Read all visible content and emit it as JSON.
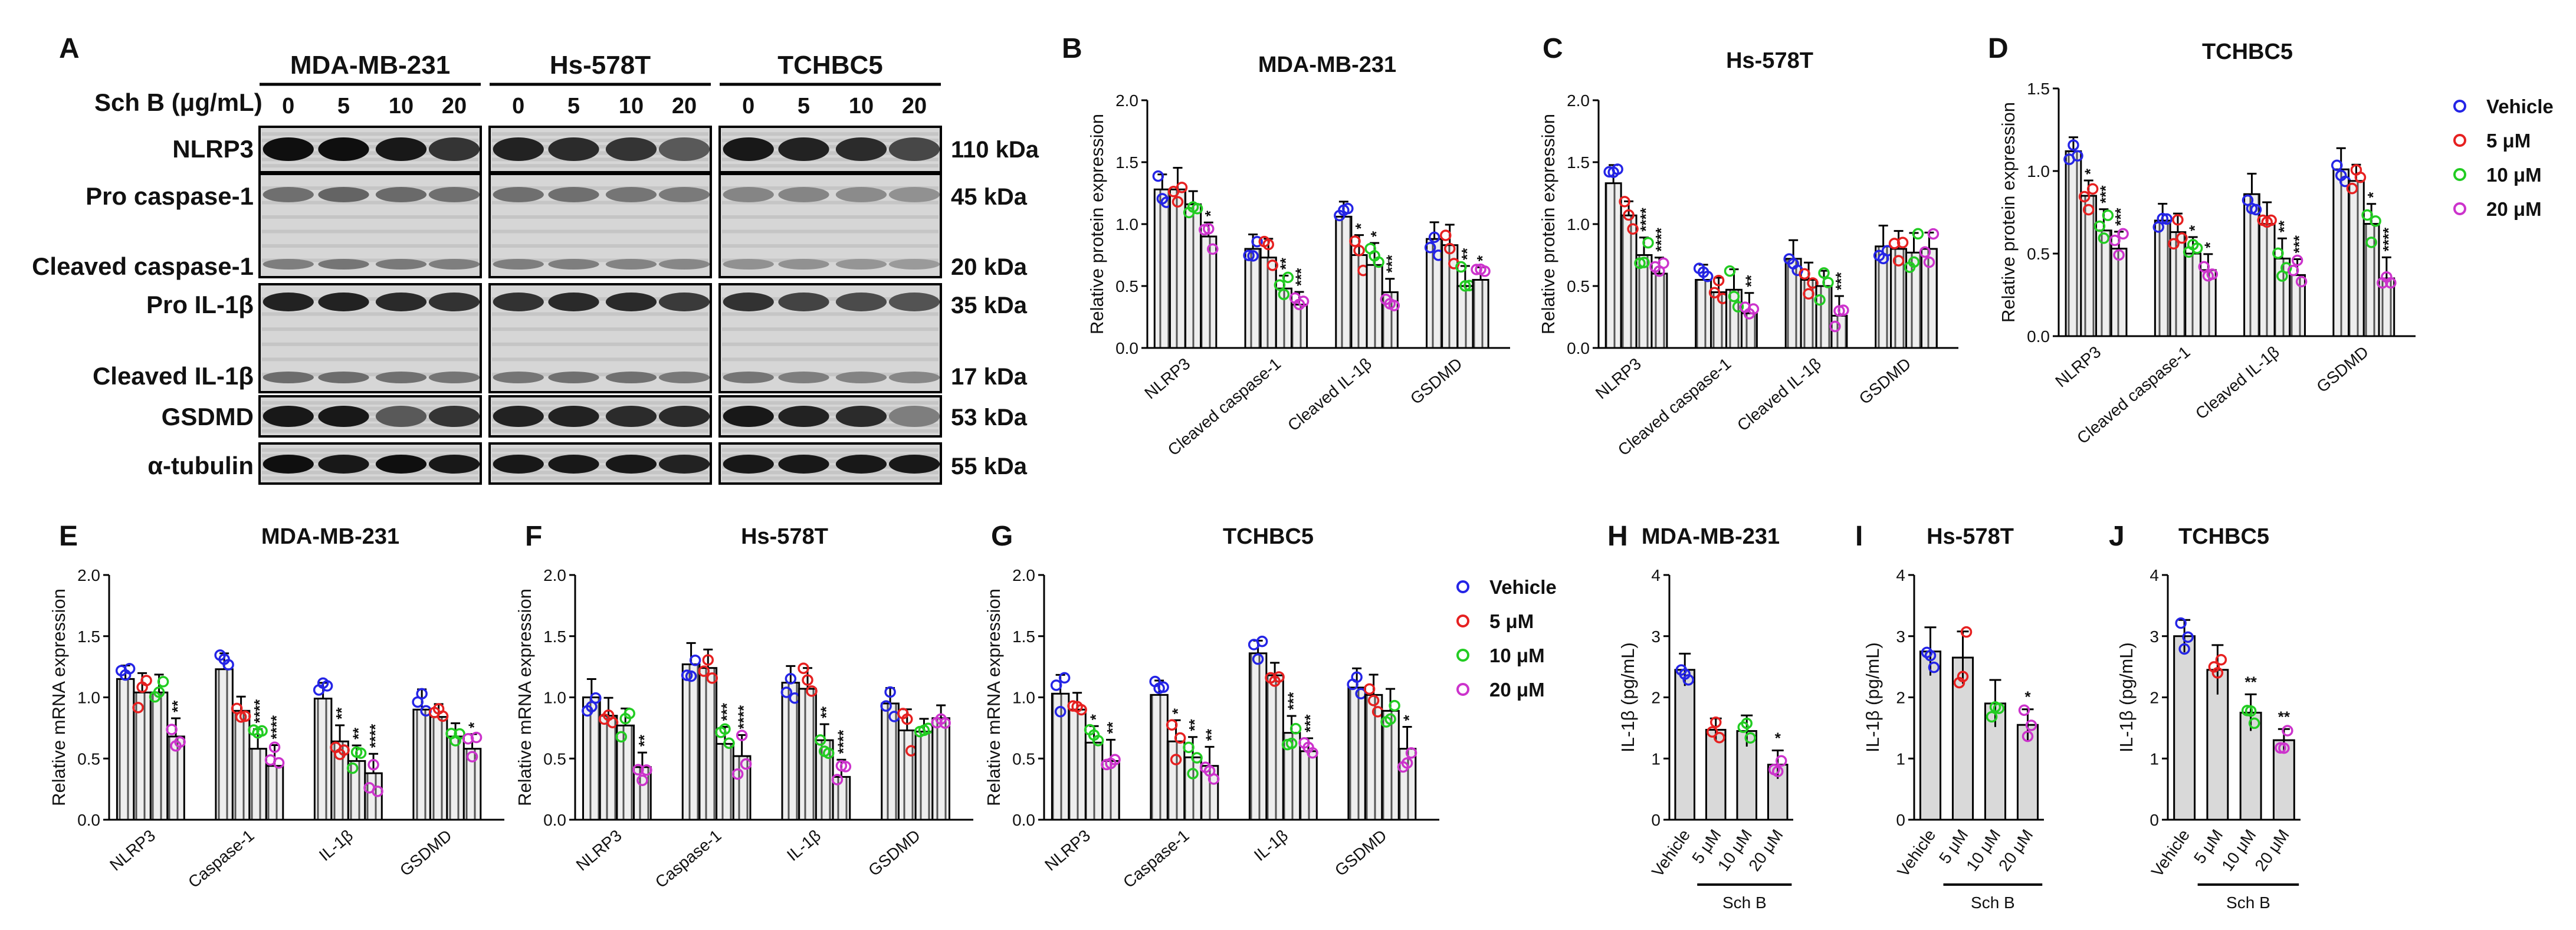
{
  "panel_letters": [
    "A",
    "B",
    "C",
    "D",
    "E",
    "F",
    "G",
    "H",
    "I",
    "J"
  ],
  "western_blot": {
    "cell_lines": [
      "MDA-MB-231",
      "Hs-578T",
      "TCHBC5"
    ],
    "dose_label": "Sch B (μg/mL)",
    "doses": [
      "0",
      "5",
      "10",
      "20"
    ],
    "row_labels": [
      "NLRP3",
      "Pro caspase-1",
      "Cleaved caspase-1",
      "Pro IL-1β",
      "Cleaved IL-1β",
      "GSDMD",
      "α-tubulin"
    ],
    "kda": [
      "110 kDa",
      "45 kDa",
      "20 kDa",
      "35 kDa",
      "17 kDa",
      "53 kDa",
      "55 kDa"
    ]
  },
  "legend": {
    "entries": [
      "Vehicle",
      "5 μM",
      "10 μM",
      "20 μM"
    ],
    "colors": [
      "#2424e6",
      "#e62020",
      "#22cc22",
      "#cc33cc"
    ]
  },
  "chart_data": [
    {
      "panel": "B",
      "type": "bar",
      "title": "MDA-MB-231",
      "ylabel": "Relative protein expression",
      "ylim": [
        0,
        2.0
      ],
      "yticks": [
        "0.0",
        "0.5",
        "1.0",
        "1.5",
        "2.0"
      ],
      "categories": [
        "NLRP3",
        "Cleaved caspase-1",
        "Cleaved IL-1β",
        "GSDMD"
      ],
      "series": [
        {
          "name": "Vehicle",
          "values": [
            1.28,
            0.8,
            1.06,
            0.88
          ]
        },
        {
          "name": "5 μM",
          "values": [
            1.28,
            0.73,
            0.75,
            0.83
          ]
        },
        {
          "name": "10 μM",
          "values": [
            1.16,
            0.48,
            0.67,
            0.5
          ]
        },
        {
          "name": "20 μM",
          "values": [
            0.9,
            0.35,
            0.45,
            0.55
          ]
        }
      ],
      "significance": [
        [
          "",
          "",
          "",
          ""
        ],
        [
          "",
          "",
          "*",
          ""
        ],
        [
          "",
          "**",
          "*",
          "**"
        ],
        [
          "*",
          "***",
          "***",
          "*"
        ]
      ]
    },
    {
      "panel": "C",
      "type": "bar",
      "title": "Hs-578T",
      "ylabel": "Relative protein expression",
      "ylim": [
        0,
        2.0
      ],
      "yticks": [
        "0.0",
        "0.5",
        "1.0",
        "1.5",
        "2.0"
      ],
      "categories": [
        "NLRP3",
        "Cleaved caspase-1",
        "Cleaved IL-1β",
        "GSDMD"
      ],
      "series": [
        {
          "name": "Vehicle",
          "values": [
            1.33,
            0.55,
            0.72,
            0.82
          ]
        },
        {
          "name": "5 μM",
          "values": [
            1.07,
            0.45,
            0.55,
            0.8
          ]
        },
        {
          "name": "10 μM",
          "values": [
            0.75,
            0.47,
            0.5,
            0.77
          ]
        },
        {
          "name": "20 μM",
          "values": [
            0.6,
            0.28,
            0.26,
            0.8
          ]
        }
      ],
      "significance": [
        [
          "",
          "",
          "",
          ""
        ],
        [
          "",
          "",
          "",
          ""
        ],
        [
          "****",
          "",
          "",
          ""
        ],
        [
          "****",
          "**",
          "***",
          ""
        ]
      ]
    },
    {
      "panel": "D",
      "type": "bar",
      "title": "TCHBC5",
      "ylabel": "Relative protein expression",
      "ylim": [
        0,
        1.5
      ],
      "yticks": [
        "0.0",
        "0.5",
        "1.0",
        "1.5"
      ],
      "categories": [
        "NLRP3",
        "Cleaved caspase-1",
        "Cleaved IL-1β",
        "GSDMD"
      ],
      "series": [
        {
          "name": "Vehicle",
          "values": [
            1.12,
            0.7,
            0.86,
            1.01
          ]
        },
        {
          "name": "5 μM",
          "values": [
            0.85,
            0.63,
            0.68,
            0.94
          ]
        },
        {
          "name": "10 μM",
          "values": [
            0.64,
            0.5,
            0.47,
            0.68
          ]
        },
        {
          "name": "20 μM",
          "values": [
            0.53,
            0.4,
            0.37,
            0.35
          ]
        }
      ],
      "significance": [
        [
          "",
          "",
          "",
          ""
        ],
        [
          "*",
          "",
          "",
          ""
        ],
        [
          "***",
          "*",
          "**",
          "*"
        ],
        [
          "***",
          "*",
          "***",
          "****"
        ]
      ]
    },
    {
      "panel": "E",
      "type": "bar",
      "title": "MDA-MB-231",
      "ylabel": "Relative mRNA expression",
      "ylim": [
        0,
        2.0
      ],
      "yticks": [
        "0.0",
        "0.5",
        "1.0",
        "1.5",
        "2.0"
      ],
      "categories": [
        "NLRP3",
        "Caspase-1",
        "IL-1β",
        "GSDMD"
      ],
      "series": [
        {
          "name": "Vehicle",
          "values": [
            1.15,
            1.23,
            0.99,
            0.9
          ]
        },
        {
          "name": "5 μM",
          "values": [
            1.04,
            0.89,
            0.64,
            0.84
          ]
        },
        {
          "name": "10 μM",
          "values": [
            1.04,
            0.58,
            0.48,
            0.68
          ]
        },
        {
          "name": "20 μM",
          "values": [
            0.68,
            0.44,
            0.38,
            0.58
          ]
        }
      ],
      "significance": [
        [
          "",
          "",
          "",
          ""
        ],
        [
          "",
          "",
          "**",
          ""
        ],
        [
          "",
          "****",
          "**",
          ""
        ],
        [
          "**",
          "****",
          "****",
          "*"
        ]
      ]
    },
    {
      "panel": "F",
      "type": "bar",
      "title": "Hs-578T",
      "ylabel": "Relative mRNA expression",
      "ylim": [
        0,
        2.0
      ],
      "yticks": [
        "0.0",
        "0.5",
        "1.0",
        "1.5",
        "2.0"
      ],
      "categories": [
        "NLRP3",
        "Caspase-1",
        "IL-1β",
        "GSDMD"
      ],
      "series": [
        {
          "name": "Vehicle",
          "values": [
            1.0,
            1.27,
            1.12,
            0.95
          ]
        },
        {
          "name": "5 μM",
          "values": [
            0.85,
            1.24,
            1.07,
            0.73
          ]
        },
        {
          "name": "10 μM",
          "values": [
            0.77,
            0.62,
            0.65,
            0.72
          ]
        },
        {
          "name": "20 μM",
          "values": [
            0.43,
            0.52,
            0.35,
            0.83
          ]
        }
      ],
      "significance": [
        [
          "",
          "",
          "",
          ""
        ],
        [
          "",
          "",
          "",
          ""
        ],
        [
          "",
          "***",
          "**",
          ""
        ],
        [
          "**",
          "****",
          "****",
          ""
        ]
      ]
    },
    {
      "panel": "G",
      "type": "bar",
      "title": "TCHBC5",
      "ylabel": "Relative mRNA expression",
      "ylim": [
        0,
        2.0
      ],
      "yticks": [
        "0.0",
        "0.5",
        "1.0",
        "1.5",
        "2.0"
      ],
      "categories": [
        "NLRP3",
        "Caspase-1",
        "IL-1β",
        "GSDMD"
      ],
      "series": [
        {
          "name": "Vehicle",
          "values": [
            1.03,
            1.02,
            1.36,
            1.08
          ]
        },
        {
          "name": "5 μM",
          "values": [
            0.9,
            0.64,
            1.18,
            1.02
          ]
        },
        {
          "name": "10 μM",
          "values": [
            0.63,
            0.51,
            0.71,
            0.89
          ]
        },
        {
          "name": "20 μM",
          "values": [
            0.48,
            0.44,
            0.56,
            0.58
          ]
        }
      ],
      "significance": [
        [
          "",
          "",
          "",
          ""
        ],
        [
          "",
          "*",
          "",
          ""
        ],
        [
          "*",
          "**",
          "***",
          ""
        ],
        [
          "**",
          "**",
          "***",
          "*"
        ]
      ]
    },
    {
      "panel": "H",
      "type": "bar",
      "title": "MDA-MB-231",
      "ylabel": "IL-1β (pg/mL)",
      "ylim": [
        0,
        4
      ],
      "yticks": [
        "0",
        "1",
        "2",
        "3",
        "4"
      ],
      "categories": [
        "Vehicle",
        "5 μM",
        "10 μM",
        "20 μM"
      ],
      "values": [
        2.45,
        1.47,
        1.45,
        0.9
      ],
      "significance": [
        "",
        "",
        "",
        "*"
      ],
      "group_label": "Sch B"
    },
    {
      "panel": "I",
      "type": "bar",
      "title": "Hs-578T",
      "ylabel": "IL-1β (pg/mL)",
      "ylim": [
        0,
        4
      ],
      "yticks": [
        "0",
        "1",
        "2",
        "3",
        "4"
      ],
      "categories": [
        "Vehicle",
        "5 μM",
        "10 μM",
        "20 μM"
      ],
      "values": [
        2.75,
        2.65,
        1.9,
        1.55
      ],
      "significance": [
        "",
        "",
        "",
        "*"
      ],
      "group_label": "Sch B"
    },
    {
      "panel": "J",
      "type": "bar",
      "title": "TCHBC5",
      "ylabel": "IL-1β (pg/mL)",
      "ylim": [
        0,
        4
      ],
      "yticks": [
        "0",
        "1",
        "2",
        "3",
        "4"
      ],
      "categories": [
        "Vehicle",
        "5 μM",
        "10 μM",
        "20 μM"
      ],
      "values": [
        3.0,
        2.45,
        1.75,
        1.3
      ],
      "significance": [
        "",
        "",
        "**",
        "**"
      ],
      "group_label": "Sch B"
    }
  ]
}
